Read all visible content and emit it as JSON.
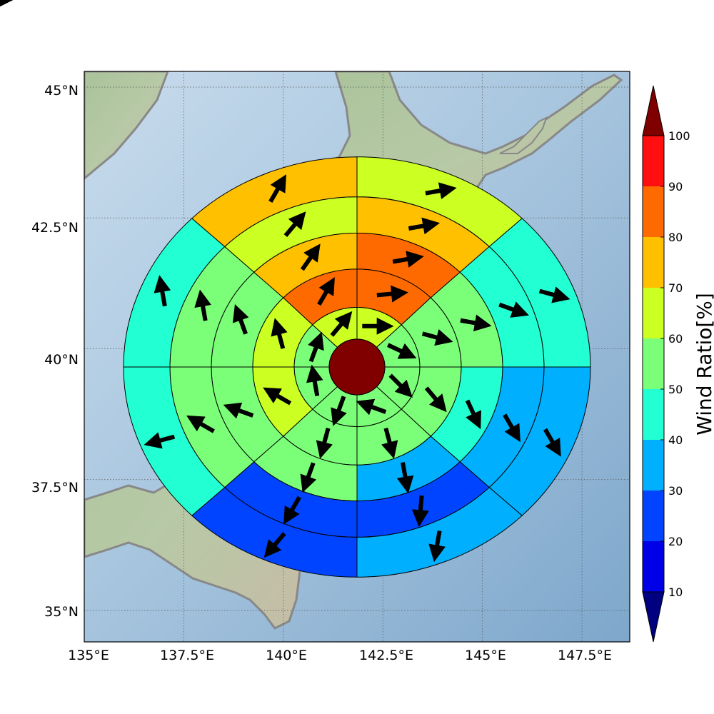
{
  "map": {
    "xticks": [
      "135°E",
      "137.5°E",
      "140°E",
      "142.5°E",
      "145°E",
      "147.5°E"
    ],
    "yticks": [
      "45°N",
      "42.5°N",
      "40°N",
      "37.5°N",
      "35°N"
    ],
    "lon_range": [
      135,
      148.7
    ],
    "lat_range": [
      34.4,
      45.3
    ],
    "center": {
      "lon": 141.75,
      "lat": 40.1
    },
    "grid": true
  },
  "colorbar": {
    "label": "Wind Ratio[%]",
    "ticks": [
      "10",
      "20",
      "30",
      "40",
      "50",
      "60",
      "70",
      "80",
      "90",
      "100"
    ],
    "bands": [
      {
        "from": 10,
        "to": 20,
        "color": "#0000e8"
      },
      {
        "from": 20,
        "to": 30,
        "color": "#0044ff"
      },
      {
        "from": 30,
        "to": 40,
        "color": "#00b0ff"
      },
      {
        "from": 40,
        "to": 50,
        "color": "#22ffd2"
      },
      {
        "from": 50,
        "to": 60,
        "color": "#7cff78"
      },
      {
        "from": 60,
        "to": 70,
        "color": "#ccff22"
      },
      {
        "from": 70,
        "to": 80,
        "color": "#ffc000"
      },
      {
        "from": 80,
        "to": 90,
        "color": "#ff6a00"
      },
      {
        "from": 90,
        "to": 100,
        "color": "#ff0f0f"
      }
    ],
    "under_color": "#000080",
    "over_color": "#800000",
    "center_color": "#800000"
  },
  "chart_data": {
    "type": "polar-sector-map",
    "sector_angles_deg": [
      22.5,
      67.5,
      112.5,
      157.5,
      202.5,
      247.5,
      292.5,
      337.5
    ],
    "rings": [
      {
        "ring": 1,
        "values": [
          68,
          58,
          56,
          58,
          56,
          55,
          57,
          64
        ],
        "arrow_dir_deg": [
          90,
          115,
          135,
          290,
          200,
          350,
          20,
          40
        ]
      },
      {
        "ring": 2,
        "values": [
          83,
          57,
          55,
          58,
          52,
          62,
          65,
          83
        ],
        "arrow_dir_deg": [
          85,
          105,
          140,
          165,
          195,
          300,
          345,
          30
        ]
      },
      {
        "ring": 3,
        "values": [
          83,
          55,
          45,
          35,
          55,
          58,
          57,
          72
        ],
        "arrow_dir_deg": [
          80,
          100,
          155,
          170,
          200,
          290,
          340,
          35
        ]
      },
      {
        "ring": 4,
        "values": [
          72,
          45,
          35,
          25,
          25,
          55,
          55,
          65
        ],
        "arrow_dir_deg": [
          80,
          110,
          150,
          185,
          210,
          300,
          350,
          40
        ]
      },
      {
        "ring": 5,
        "values": [
          65,
          45,
          35,
          35,
          22,
          42,
          45,
          70
        ],
        "arrow_dir_deg": [
          80,
          105,
          150,
          190,
          220,
          255,
          350,
          30
        ]
      },
      {
        "ring": 6,
        "values": [
          72,
          45,
          22,
          25,
          35,
          35,
          42,
          65
        ],
        "arrow_dir_deg": [
          80,
          115,
          155,
          195,
          240,
          290,
          350,
          55
        ]
      }
    ]
  }
}
